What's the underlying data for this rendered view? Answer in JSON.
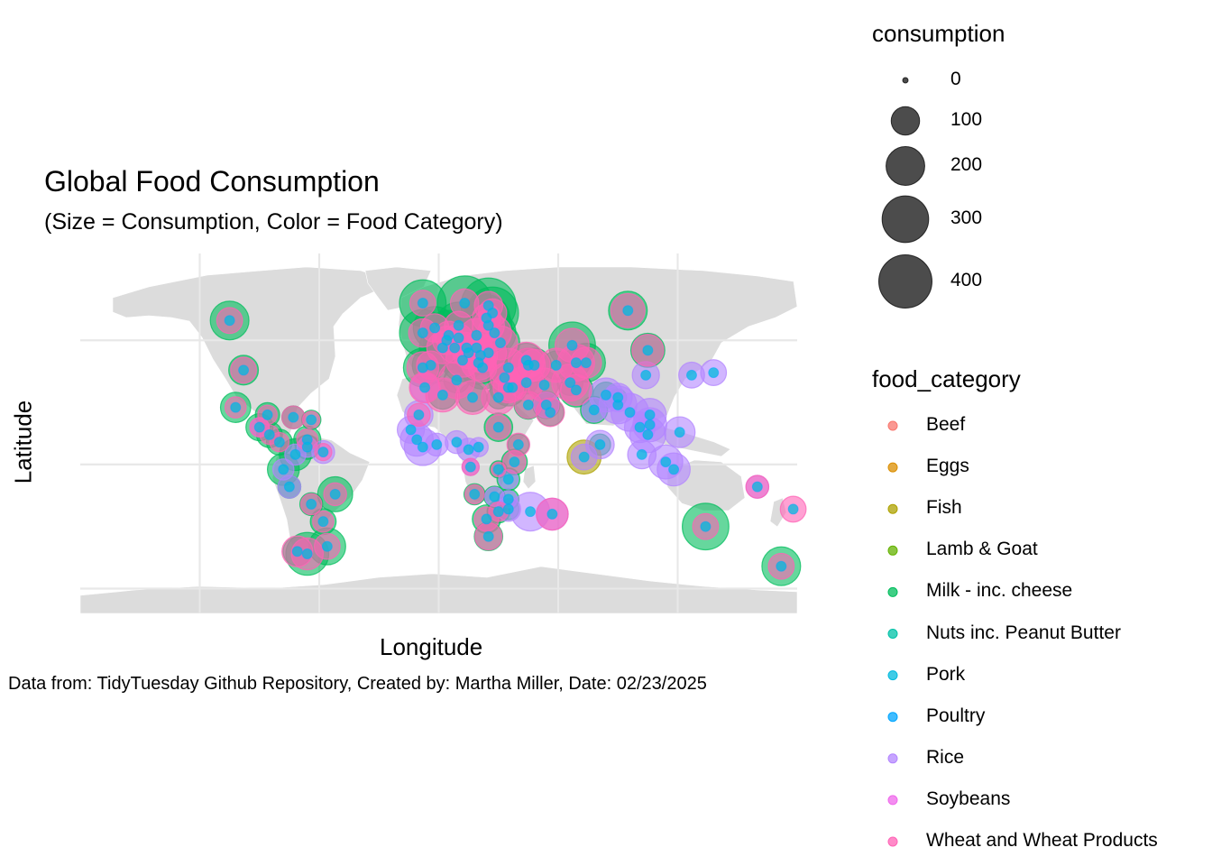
{
  "chart_data": {
    "type": "scatter",
    "title": "Global Food Consumption",
    "subtitle": "(Size = Consumption, Color = Food Category)",
    "xlabel": "Longitude",
    "ylabel": "Latitude",
    "caption": "Data from: TidyTuesday Github Repository, Created by: Martha Miller, Date: 02/23/2025",
    "xlim": [
      -180,
      180
    ],
    "ylim": [
      -60,
      85
    ],
    "grid": true,
    "legend_position": "right",
    "size_legend": {
      "title": "consumption",
      "breaks": [
        0,
        100,
        200,
        300,
        400
      ],
      "labels": [
        "0",
        "100",
        "200",
        "300",
        "400"
      ]
    },
    "color_legend": {
      "title": "food_category",
      "categories": [
        {
          "name": "Beef",
          "color": "#F8766D"
        },
        {
          "name": "Eggs",
          "color": "#DB8E00"
        },
        {
          "name": "Fish",
          "color": "#AEA200"
        },
        {
          "name": "Lamb & Goat",
          "color": "#64B200"
        },
        {
          "name": "Milk - inc. cheese",
          "color": "#00BD5C"
        },
        {
          "name": "Nuts inc. Peanut Butter",
          "color": "#00C1A7"
        },
        {
          "name": "Pork",
          "color": "#00BADE"
        },
        {
          "name": "Poultry",
          "color": "#00A6FF"
        },
        {
          "name": "Rice",
          "color": "#B385FF"
        },
        {
          "name": "Soybeans",
          "color": "#EF67EB"
        },
        {
          "name": "Wheat and Wheat Products",
          "color": "#FF63B6"
        }
      ]
    },
    "points": [
      {
        "lon": -105,
        "lat": 58,
        "milk": 200,
        "wheat": 80
      },
      {
        "lon": -98,
        "lat": 38,
        "milk": 110,
        "wheat": 80
      },
      {
        "lon": -73,
        "lat": 19,
        "milk": 60,
        "wheat": 60
      },
      {
        "lon": -102,
        "lat": 23,
        "milk": 115,
        "wheat": 50
      },
      {
        "lon": -86,
        "lat": 20,
        "milk": 70,
        "wheat": 40
      },
      {
        "lon": -64,
        "lat": 18,
        "milk": 40,
        "wheat": 30
      },
      {
        "lon": -90,
        "lat": 15,
        "milk": 90,
        "rice": 40,
        "wheat": 40
      },
      {
        "lon": -85,
        "lat": 12,
        "milk": 80,
        "wheat": 40
      },
      {
        "lon": -80,
        "lat": 9,
        "milk": 80,
        "wheat": 40
      },
      {
        "lon": -66,
        "lat": 10,
        "milk": 90,
        "wheat": 50
      },
      {
        "lon": -66,
        "lat": 7,
        "milk": 70,
        "rice": 45
      },
      {
        "lon": -72,
        "lat": 4,
        "milk": 130,
        "rice": 50
      },
      {
        "lon": -58,
        "lat": 5,
        "rice": 60,
        "wheat": 30
      },
      {
        "lon": -78,
        "lat": -2,
        "milk": 130,
        "rice": 50
      },
      {
        "lon": -75,
        "lat": -9,
        "milk": 60,
        "rice": 60
      },
      {
        "lon": -64,
        "lat": -16,
        "milk": 60,
        "wheat": 50
      },
      {
        "lon": -52,
        "lat": -12,
        "milk": 160,
        "wheat": 60
      },
      {
        "lon": -58,
        "lat": -23,
        "milk": 80,
        "wheat": 50
      },
      {
        "lon": -56,
        "lat": -33,
        "milk": 180,
        "wheat": 80
      },
      {
        "lon": -66,
        "lat": -36,
        "milk": 250,
        "wheat": 130
      },
      {
        "lon": -71,
        "lat": -35,
        "milk": 100,
        "wheat": 120
      },
      {
        "lon": -8,
        "lat": 65,
        "milk": 300,
        "wheat": 80
      },
      {
        "lon": 13,
        "lat": 65,
        "milk": 420,
        "wheat": 100
      },
      {
        "lon": 25,
        "lat": 64,
        "milk": 430,
        "wheat": 100
      },
      {
        "lon": 27,
        "lat": 61,
        "milk": 380,
        "wheat": 100
      },
      {
        "lon": -2,
        "lat": 55,
        "milk": 250,
        "wheat": 100
      },
      {
        "lon": -8,
        "lat": 53,
        "milk": 300,
        "wheat": 100
      },
      {
        "lon": 10,
        "lat": 56,
        "milk": 300,
        "wheat": 100
      },
      {
        "lon": 5,
        "lat": 52,
        "milk": 350,
        "wheat": 100
      },
      {
        "lon": 4,
        "lat": 50,
        "milk": 300,
        "wheat": 100
      },
      {
        "lon": 10,
        "lat": 51,
        "milk": 350,
        "wheat": 100
      },
      {
        "lon": 2,
        "lat": 47,
        "milk": 300,
        "wheat": 130
      },
      {
        "lon": 8,
        "lat": 47,
        "milk": 350,
        "wheat": 120
      },
      {
        "lon": 14,
        "lat": 47,
        "milk": 300,
        "wheat": 120
      },
      {
        "lon": 19,
        "lat": 52,
        "milk": 300,
        "wheat": 150
      },
      {
        "lon": 25,
        "lat": 56,
        "milk": 300,
        "wheat": 130
      },
      {
        "lon": 24,
        "lat": 59,
        "milk": 300,
        "wheat": 100
      },
      {
        "lon": 28,
        "lat": 53,
        "milk": 250,
        "wheat": 150
      },
      {
        "lon": 31,
        "lat": 49,
        "milk": 200,
        "wheat": 150
      },
      {
        "lon": 25,
        "lat": 45,
        "milk": 200,
        "wheat": 170
      },
      {
        "lon": 19,
        "lat": 47,
        "milk": 200,
        "wheat": 120
      },
      {
        "lon": 21,
        "lat": 44,
        "milk": 200,
        "wheat": 150
      },
      {
        "lon": 20,
        "lat": 41,
        "milk": 250,
        "wheat": 160
      },
      {
        "lon": 15,
        "lat": 45,
        "milk": 250,
        "wheat": 130
      },
      {
        "lon": 12,
        "lat": 42,
        "milk": 250,
        "wheat": 150
      },
      {
        "lon": 22,
        "lat": 39,
        "milk": 250,
        "wheat": 100
      },
      {
        "lon": -4,
        "lat": 40,
        "milk": 180,
        "wheat": 100
      },
      {
        "lon": -8,
        "lat": 39,
        "milk": 200,
        "wheat": 130
      },
      {
        "lon": 35,
        "lat": 39,
        "milk": 150,
        "wheat": 200
      },
      {
        "lon": 33,
        "lat": 35,
        "milk": 150,
        "wheat": 100
      },
      {
        "lon": 44,
        "lat": 42,
        "milk": 150,
        "wheat": 170
      },
      {
        "lon": 45,
        "lat": 40,
        "milk": 150,
        "wheat": 150
      },
      {
        "lon": 48,
        "lat": 40,
        "milk": 150,
        "wheat": 130
      },
      {
        "lon": 35,
        "lat": 31,
        "milk": 180,
        "wheat": 120
      },
      {
        "lon": 37,
        "lat": 31,
        "milk": 100,
        "wheat": 100
      },
      {
        "lon": 44,
        "lat": 33,
        "milk": 60,
        "wheat": 160
      },
      {
        "lon": 53,
        "lat": 32,
        "milk": 100,
        "wheat": 150
      },
      {
        "lon": 45,
        "lat": 24,
        "milk": 100,
        "wheat": 90
      },
      {
        "lon": 54,
        "lat": 24,
        "milk": 90,
        "rice": 80
      },
      {
        "lon": 56,
        "lat": 21,
        "milk": 90,
        "wheat": 100
      },
      {
        "lon": 59,
        "lat": 40,
        "milk": 100,
        "wheat": 150
      },
      {
        "lon": 67,
        "lat": 48,
        "milk": 300,
        "wheat": 150
      },
      {
        "lon": 69,
        "lat": 41,
        "milk": 100,
        "wheat": 180
      },
      {
        "lon": 74,
        "lat": 41,
        "milk": 200,
        "wheat": 120
      },
      {
        "lon": 66,
        "lat": 33,
        "milk": 80,
        "wheat": 180
      },
      {
        "lon": 69,
        "lat": 30,
        "milk": 150,
        "wheat": 120
      },
      {
        "lon": 78,
        "lat": 22,
        "milk": 90,
        "rice": 70
      },
      {
        "lon": 84,
        "lat": 28,
        "milk": 80,
        "rice": 150
      },
      {
        "lon": 90,
        "lat": 24,
        "rice": 190
      },
      {
        "lon": 90,
        "lat": 27,
        "milk": 30,
        "rice": 100
      },
      {
        "lon": 96,
        "lat": 21,
        "rice": 190
      },
      {
        "lon": 101,
        "lat": 15,
        "rice": 120
      },
      {
        "lon": 105,
        "lat": 12,
        "rice": 170
      },
      {
        "lon": 106,
        "lat": 16,
        "rice": 150
      },
      {
        "lon": 106,
        "lat": 20,
        "rice": 140
      },
      {
        "lon": 102,
        "lat": 4,
        "rice": 100
      },
      {
        "lon": 81,
        "lat": 8,
        "milk": 50,
        "rice": 100
      },
      {
        "lon": 73,
        "lat": 3,
        "fish": 150,
        "rice": 80
      },
      {
        "lon": 104,
        "lat": 36,
        "rice": 90
      },
      {
        "lon": 105,
        "lat": 46,
        "milk": 150,
        "wheat": 130
      },
      {
        "lon": 127,
        "lat": 36,
        "rice": 80
      },
      {
        "lon": 138,
        "lat": 37,
        "rice": 80
      },
      {
        "lon": 121,
        "lat": 13,
        "rice": 120
      },
      {
        "lon": 114,
        "lat": 1,
        "rice": 150
      },
      {
        "lon": 118,
        "lat": -2,
        "rice": 140
      },
      {
        "lon": 134,
        "lat": -25,
        "milk": 300,
        "wheat": 80
      },
      {
        "lon": 172,
        "lat": -41,
        "milk": 200,
        "wheat": 80
      },
      {
        "lon": 160,
        "lat": -9,
        "rice": 60,
        "wheat": 60
      },
      {
        "lon": 178,
        "lat": -18,
        "wheat": 80
      },
      {
        "lon": 95,
        "lat": 62,
        "milk": 200,
        "wheat": 150
      },
      {
        "lon": -7,
        "lat": 31,
        "rice": 100,
        "wheat": 120
      },
      {
        "lon": 2,
        "lat": 28,
        "milk": 100,
        "wheat": 150
      },
      {
        "lon": 9,
        "lat": 34,
        "milk": 80,
        "wheat": 180
      },
      {
        "lon": 17,
        "lat": 27,
        "milk": 100,
        "wheat": 150
      },
      {
        "lon": 30,
        "lat": 27,
        "milk": 60,
        "wheat": 150
      },
      {
        "lon": -10,
        "lat": 20,
        "rice": 100,
        "wheat": 60
      },
      {
        "lon": -14,
        "lat": 14,
        "rice": 90
      },
      {
        "lon": -11,
        "lat": 10,
        "rice": 140
      },
      {
        "lon": -8,
        "lat": 7,
        "rice": 180
      },
      {
        "lon": -1,
        "lat": 8,
        "rice": 60
      },
      {
        "lon": 9,
        "lat": 9,
        "rice": 60
      },
      {
        "lon": 15,
        "lat": 6,
        "rice": 60
      },
      {
        "lon": 20,
        "lat": 7,
        "rice": 40
      },
      {
        "lon": 30,
        "lat": 15,
        "milk": 100,
        "wheat": 70
      },
      {
        "lon": 40,
        "lat": 8,
        "milk": 50,
        "wheat": 60
      },
      {
        "lon": 38,
        "lat": 1,
        "milk": 80,
        "wheat": 60
      },
      {
        "lon": 35,
        "lat": -6,
        "milk": 60,
        "rice": 40
      },
      {
        "lon": 16,
        "lat": -1,
        "rice": 30,
        "wheat": 30
      },
      {
        "lon": 18,
        "lat": -12,
        "milk": 50,
        "wheat": 40
      },
      {
        "lon": 30,
        "lat": -2,
        "milk": 30,
        "wheat": 20
      },
      {
        "lon": 28,
        "lat": -13,
        "milk": 50,
        "rice": 40
      },
      {
        "lon": 35,
        "lat": -14,
        "milk": 50,
        "rice": 30
      },
      {
        "lon": 30,
        "lat": -19,
        "milk": 60,
        "wheat": 40
      },
      {
        "lon": 35,
        "lat": -18,
        "milk": 50,
        "rice": 70
      },
      {
        "lon": 24,
        "lat": -22,
        "milk": 100,
        "wheat": 70
      },
      {
        "lon": 25,
        "lat": -29,
        "milk": 100,
        "wheat": 90
      },
      {
        "lon": 46,
        "lat": -19,
        "rice": 200
      },
      {
        "lon": 57,
        "lat": -20,
        "rice": 130,
        "wheat": 130
      }
    ]
  }
}
